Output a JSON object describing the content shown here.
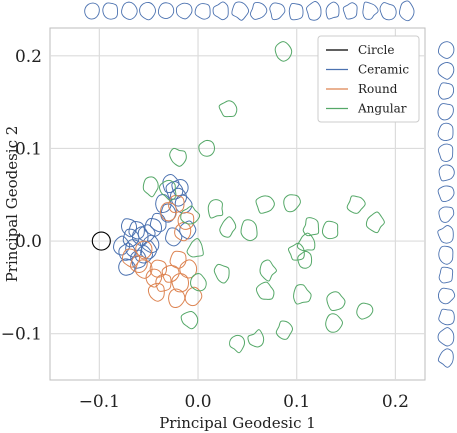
{
  "chart_data": {
    "type": "scatter",
    "xlabel": "Principal Geodesic 1",
    "ylabel": "Principal Geodesic 2",
    "xlim": [
      -0.15,
      0.23
    ],
    "ylim": [
      -0.15,
      0.23
    ],
    "xticks": [
      {
        "v": -0.1,
        "label": "−0.1"
      },
      {
        "v": 0.0,
        "label": "0.0"
      },
      {
        "v": 0.1,
        "label": "0.1"
      },
      {
        "v": 0.2,
        "label": "0.2"
      }
    ],
    "yticks": [
      {
        "v": 0.2,
        "label": "0.2"
      },
      {
        "v": 0.1,
        "label": "0.1"
      },
      {
        "v": 0.0,
        "label": "0.0"
      },
      {
        "v": -0.1,
        "label": "−0.1"
      }
    ],
    "grid": true,
    "legend_position": "top-right",
    "series": [
      {
        "name": "Circle",
        "color": "#000000",
        "points": [
          [
            -0.098,
            0.0
          ]
        ]
      },
      {
        "name": "Ceramic",
        "color": "#4c72b0",
        "points": [
          [
            -0.078,
            -0.005
          ],
          [
            -0.072,
            -0.012
          ],
          [
            -0.068,
            0.003
          ],
          [
            -0.065,
            -0.008
          ],
          [
            -0.062,
            0.012
          ],
          [
            -0.058,
            0.005
          ],
          [
            -0.055,
            -0.015
          ],
          [
            -0.052,
            0.008
          ],
          [
            -0.048,
            -0.003
          ],
          [
            -0.045,
            0.015
          ],
          [
            -0.07,
            0.015
          ],
          [
            -0.06,
            -0.02
          ],
          [
            -0.028,
            0.062
          ],
          [
            -0.024,
            0.055
          ],
          [
            -0.02,
            0.048
          ],
          [
            -0.018,
            0.058
          ],
          [
            -0.035,
            0.04
          ],
          [
            -0.03,
            0.03
          ],
          [
            -0.015,
            0.04
          ],
          [
            -0.025,
            0.005
          ],
          [
            -0.072,
            -0.028
          ],
          [
            -0.05,
            -0.01
          ],
          [
            -0.01,
            0.012
          ],
          [
            -0.04,
            0.02
          ]
        ]
      },
      {
        "name": "Round",
        "color": "#dd8452",
        "points": [
          [
            -0.068,
            -0.018
          ],
          [
            -0.06,
            -0.025
          ],
          [
            -0.055,
            -0.01
          ],
          [
            -0.045,
            -0.04
          ],
          [
            -0.042,
            -0.055
          ],
          [
            -0.035,
            -0.045
          ],
          [
            -0.028,
            -0.035
          ],
          [
            -0.022,
            -0.062
          ],
          [
            -0.018,
            -0.045
          ],
          [
            -0.03,
            0.032
          ],
          [
            -0.022,
            0.04
          ],
          [
            -0.012,
            0.022
          ],
          [
            -0.005,
            -0.06
          ],
          [
            -0.01,
            -0.03
          ],
          [
            -0.055,
            -0.03
          ],
          [
            -0.04,
            -0.03
          ],
          [
            -0.02,
            -0.02
          ],
          [
            -0.015,
            0.01
          ]
        ]
      },
      {
        "name": "Angular",
        "color": "#55a868",
        "points": [
          [
            0.085,
            0.205
          ],
          [
            0.03,
            0.142
          ],
          [
            0.008,
            0.1
          ],
          [
            -0.02,
            0.09
          ],
          [
            -0.048,
            0.058
          ],
          [
            -0.03,
            0.055
          ],
          [
            0.018,
            0.035
          ],
          [
            0.068,
            0.04
          ],
          [
            0.095,
            0.042
          ],
          [
            0.03,
            0.015
          ],
          [
            0.052,
            0.012
          ],
          [
            0.115,
            0.015
          ],
          [
            0.135,
            0.012
          ],
          [
            0.16,
            0.04
          ],
          [
            0.18,
            0.02
          ],
          [
            0.11,
            -0.002
          ],
          [
            0.1,
            -0.012
          ],
          [
            0.108,
            -0.02
          ],
          [
            0.025,
            -0.035
          ],
          [
            0.07,
            -0.032
          ],
          [
            0.068,
            -0.055
          ],
          [
            0.0,
            -0.045
          ],
          [
            -0.008,
            -0.085
          ],
          [
            0.04,
            -0.11
          ],
          [
            0.06,
            -0.107
          ],
          [
            0.105,
            -0.058
          ],
          [
            0.14,
            -0.065
          ],
          [
            0.138,
            -0.088
          ],
          [
            0.088,
            -0.095
          ],
          [
            0.17,
            -0.075
          ],
          [
            -0.002,
            -0.008
          ],
          [
            -0.008,
            0.028
          ]
        ]
      }
    ],
    "top_strip_shapes": 18,
    "right_strip_shapes": 16,
    "strip_color": "#4c72b0"
  }
}
